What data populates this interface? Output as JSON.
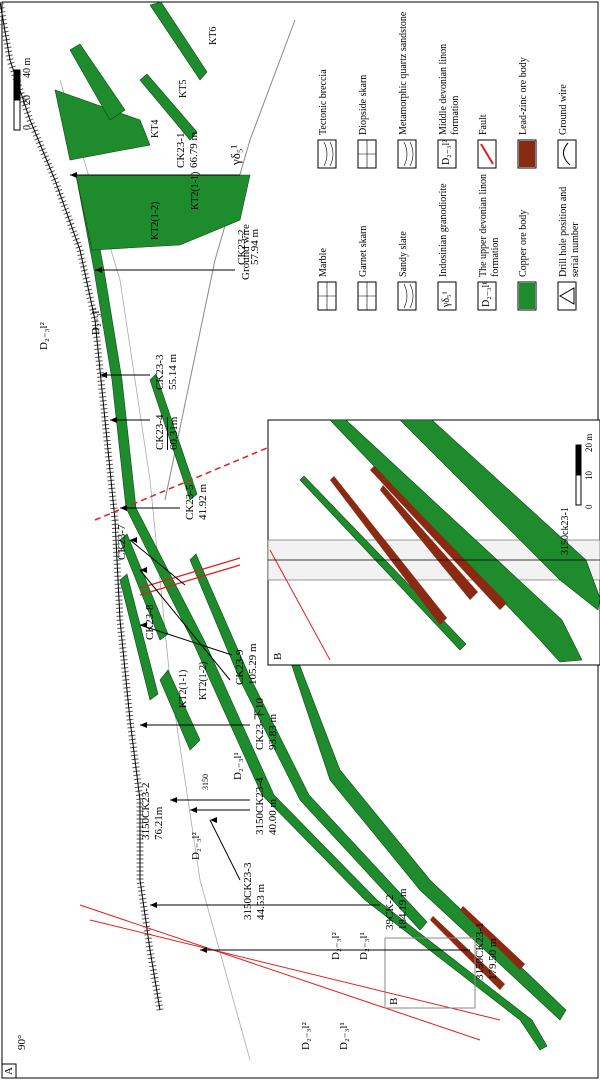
{
  "labels": {
    "panel": "A",
    "angle": "90°",
    "adit": "3150",
    "marker": "B",
    "ground_wire": "Ground wire",
    "intrusion": "γδ₅¹"
  },
  "scale_main": [
    "0",
    "20",
    "40 m"
  ],
  "formations": [
    "D₂₋₃l²",
    "D₂₋₃l¹",
    "D₂₋₃l²",
    "D₂₋₃l¹",
    "D₂₋₃l²",
    "D₂₋₃l¹",
    "D₂₋₃l²",
    "D₂₋₃l¹"
  ],
  "ore_bodies": [
    "KT2(1-2)",
    "KT2(1-1)",
    "KT4",
    "KT5",
    "KT6",
    "KT2(1-1)",
    "KT2(1-2)"
  ],
  "drill_holes": [
    {
      "name": "CK23-1",
      "depth": "66.79 m"
    },
    {
      "name": "CK23-2",
      "depth": "57.94 m"
    },
    {
      "name": "CK23-3",
      "depth": "55.14 m"
    },
    {
      "name": "CK23-4",
      "depth": "60.31m"
    },
    {
      "name": "CK23-5",
      "depth": "41.92 m"
    },
    {
      "name": "CK23-7"
    },
    {
      "name": "CK23-8"
    },
    {
      "name": "CK23-9",
      "depth": "105.29 m"
    },
    {
      "name": "CK23-下10",
      "depth": "93.83 m"
    },
    {
      "name": "3150CK23-2",
      "depth": "76.21m"
    },
    {
      "name": "3150CK23-4",
      "depth": "40.00 m"
    },
    {
      "name": "3150CK23-3",
      "depth": "44.53 m"
    },
    {
      "name": "39CK-2",
      "depth": "184.19 m"
    },
    {
      "name": "3150CK23-1",
      "depth": "179.50 m"
    }
  ],
  "legend": [
    {
      "label": "Marble"
    },
    {
      "label": "Garnet skarn"
    },
    {
      "label": "Sandy slate"
    },
    {
      "label": "Indosinian granodiorite",
      "symbol": "γδ₅¹"
    },
    {
      "label": "The upper devonian linon formation",
      "symbol": "D₂₋₃l¹"
    },
    {
      "label": "Copper ore body"
    },
    {
      "label": "Drill hole position and serial number"
    },
    {
      "label": "Tectonic breccia"
    },
    {
      "label": "Diopside skarn"
    },
    {
      "label": "Metamorphic quartz sandstone"
    },
    {
      "label": "Middle devonian linon formation",
      "symbol": "D₂₋₃l²"
    },
    {
      "label": "Fault"
    },
    {
      "label": "Lead-zinc ore body"
    },
    {
      "label": "Ground wire"
    }
  ],
  "inset": {
    "label": "B",
    "drill": "3150ck23-1",
    "scale": [
      "0",
      "10",
      "20 m"
    ]
  }
}
